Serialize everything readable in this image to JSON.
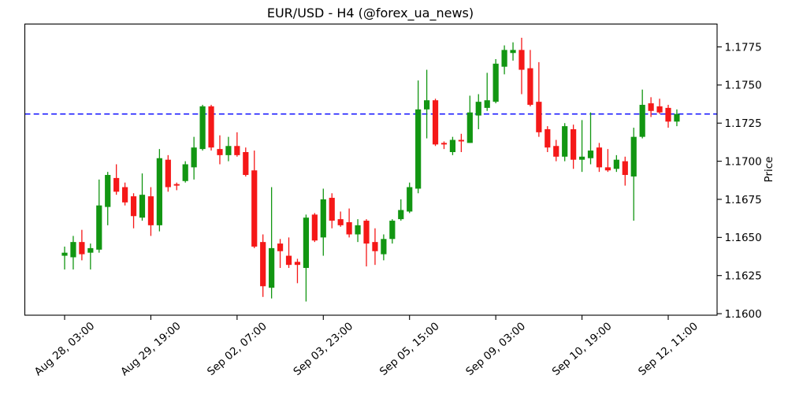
{
  "title": "EUR/USD - H4 (@forex_ua_news)",
  "chart_data": {
    "type": "candlestick",
    "instrument": "EUR/USD",
    "timeframe": "H4",
    "ylabel": "Price",
    "ylim": [
      1.1599,
      1.179
    ],
    "grid": false,
    "legend": "none",
    "up_color": "#129612",
    "down_color": "#f51818",
    "hline": {
      "value": 1.1731,
      "color": "#0000ff",
      "style": "dashed"
    },
    "y_ticks": [
      1.16,
      1.1625,
      1.165,
      1.1675,
      1.17,
      1.1725,
      1.175,
      1.1775
    ],
    "x_tick_indices": [
      0,
      10,
      20,
      30,
      40,
      50,
      60,
      70
    ],
    "x_tick_labels": [
      "Aug 28, 03:00",
      "Aug 29, 19:00",
      "Sep 02, 07:00",
      "Sep 03, 23:00",
      "Sep 05, 15:00",
      "Sep 09, 03:00",
      "Sep 10, 19:00",
      "Sep 12, 11:00"
    ],
    "candles_ohlc": [
      [
        1.1638,
        1.1644,
        1.1629,
        1.164
      ],
      [
        1.1637,
        1.1651,
        1.1629,
        1.1647
      ],
      [
        1.1647,
        1.1655,
        1.1635,
        1.1639
      ],
      [
        1.164,
        1.1646,
        1.1629,
        1.1643
      ],
      [
        1.1642,
        1.1688,
        1.164,
        1.1671
      ],
      [
        1.167,
        1.1693,
        1.1658,
        1.1691
      ],
      [
        1.1689,
        1.1698,
        1.1678,
        1.168
      ],
      [
        1.1683,
        1.1686,
        1.1671,
        1.1673
      ],
      [
        1.1677,
        1.1679,
        1.1656,
        1.1664
      ],
      [
        1.1663,
        1.1692,
        1.1661,
        1.1678
      ],
      [
        1.1677,
        1.1683,
        1.1651,
        1.1658
      ],
      [
        1.1658,
        1.1708,
        1.1654,
        1.1702
      ],
      [
        1.1701,
        1.1704,
        1.168,
        1.1683
      ],
      [
        1.1685,
        1.1686,
        1.1681,
        1.1684
      ],
      [
        1.1687,
        1.17,
        1.1686,
        1.1698
      ],
      [
        1.1696,
        1.1716,
        1.1688,
        1.1709
      ],
      [
        1.1708,
        1.1737,
        1.1707,
        1.1736
      ],
      [
        1.1736,
        1.1737,
        1.1707,
        1.1709
      ],
      [
        1.1708,
        1.1717,
        1.1698,
        1.1704
      ],
      [
        1.1704,
        1.1716,
        1.17,
        1.171
      ],
      [
        1.171,
        1.1719,
        1.1703,
        1.1704
      ],
      [
        1.1706,
        1.1709,
        1.169,
        1.1691
      ],
      [
        1.1694,
        1.1707,
        1.1643,
        1.1644
      ],
      [
        1.1647,
        1.1652,
        1.1611,
        1.1618
      ],
      [
        1.1617,
        1.1683,
        1.161,
        1.1643
      ],
      [
        1.1646,
        1.1649,
        1.163,
        1.1641
      ],
      [
        1.1638,
        1.165,
        1.163,
        1.1632
      ],
      [
        1.1634,
        1.1636,
        1.162,
        1.1632
      ],
      [
        1.163,
        1.1665,
        1.1608,
        1.1663
      ],
      [
        1.1665,
        1.1666,
        1.1647,
        1.1648
      ],
      [
        1.165,
        1.1682,
        1.1638,
        1.1675
      ],
      [
        1.1676,
        1.1679,
        1.1656,
        1.1661
      ],
      [
        1.1662,
        1.1667,
        1.1657,
        1.1658
      ],
      [
        1.166,
        1.1669,
        1.165,
        1.1652
      ],
      [
        1.1652,
        1.1662,
        1.1647,
        1.1658
      ],
      [
        1.1661,
        1.1662,
        1.1631,
        1.1646
      ],
      [
        1.1647,
        1.1656,
        1.1632,
        1.1641
      ],
      [
        1.1639,
        1.1652,
        1.1635,
        1.1649
      ],
      [
        1.1649,
        1.1662,
        1.1646,
        1.1661
      ],
      [
        1.1662,
        1.1675,
        1.1661,
        1.1668
      ],
      [
        1.1667,
        1.1686,
        1.1666,
        1.1683
      ],
      [
        1.1682,
        1.1753,
        1.1679,
        1.1734
      ],
      [
        1.1734,
        1.176,
        1.1715,
        1.174
      ],
      [
        1.174,
        1.1741,
        1.171,
        1.1711
      ],
      [
        1.1712,
        1.1713,
        1.1708,
        1.1711
      ],
      [
        1.1706,
        1.1716,
        1.1704,
        1.1714
      ],
      [
        1.1714,
        1.1718,
        1.1706,
        1.1713
      ],
      [
        1.1712,
        1.1743,
        1.1712,
        1.1732
      ],
      [
        1.173,
        1.1744,
        1.1721,
        1.1739
      ],
      [
        1.1735,
        1.1758,
        1.1733,
        1.174
      ],
      [
        1.1739,
        1.1767,
        1.1738,
        1.1764
      ],
      [
        1.1762,
        1.1776,
        1.1757,
        1.1773
      ],
      [
        1.1771,
        1.1778,
        1.1766,
        1.1773
      ],
      [
        1.1773,
        1.1781,
        1.1744,
        1.176
      ],
      [
        1.1761,
        1.1773,
        1.1736,
        1.1737
      ],
      [
        1.1739,
        1.1765,
        1.1716,
        1.1719
      ],
      [
        1.1721,
        1.1723,
        1.1706,
        1.1709
      ],
      [
        1.171,
        1.1714,
        1.17,
        1.1703
      ],
      [
        1.1703,
        1.1725,
        1.17,
        1.1723
      ],
      [
        1.1721,
        1.1724,
        1.1695,
        1.1701
      ],
      [
        1.1701,
        1.1727,
        1.1693,
        1.1703
      ],
      [
        1.1702,
        1.1732,
        1.1698,
        1.1707
      ],
      [
        1.1709,
        1.1712,
        1.1693,
        1.1696
      ],
      [
        1.1696,
        1.1708,
        1.1693,
        1.1694
      ],
      [
        1.1695,
        1.1704,
        1.1693,
        1.1701
      ],
      [
        1.17,
        1.1703,
        1.1684,
        1.1691
      ],
      [
        1.169,
        1.1722,
        1.1661,
        1.1716
      ],
      [
        1.1716,
        1.1747,
        1.1715,
        1.1737
      ],
      [
        1.1738,
        1.1742,
        1.1729,
        1.1733
      ],
      [
        1.1736,
        1.1741,
        1.1731,
        1.1732
      ],
      [
        1.1735,
        1.1737,
        1.1722,
        1.1726
      ],
      [
        1.1726,
        1.1734,
        1.1723,
        1.1731
      ]
    ]
  }
}
